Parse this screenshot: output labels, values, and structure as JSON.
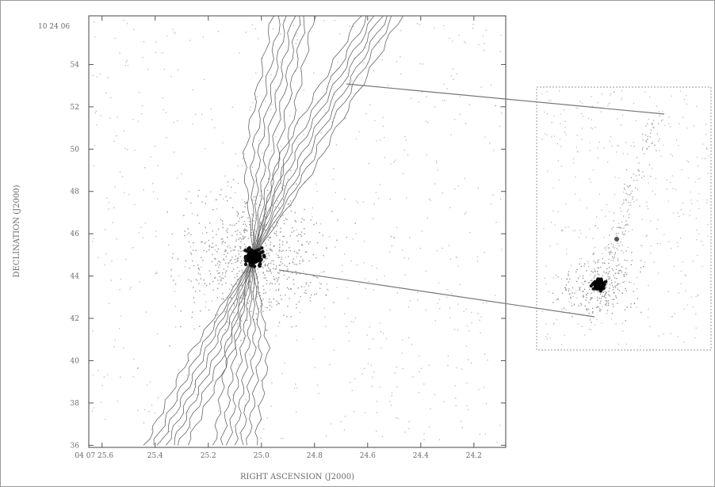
{
  "chart_data": {
    "type": "scatter",
    "xlabel": "RIGHT ASCENSION (J2000)",
    "ylabel": "DECLINATION (J2000)",
    "dec_top_label": "10 24 06",
    "ra_first_label": "04 07 25.6",
    "x_ticks": [
      "04 07 25.6",
      "25.4",
      "25.2",
      "25.0",
      "24.8",
      "24.6",
      "24.4",
      "24.2"
    ],
    "y_ticks": [
      "36",
      "38",
      "40",
      "42",
      "44",
      "46",
      "48",
      "50",
      "52",
      "54"
    ],
    "xlim": [
      25.65,
      24.08
    ],
    "ylim": [
      35.9,
      56.3
    ],
    "source_position": {
      "ra": 25.03,
      "dec": 44.9
    },
    "jet_ridges": [
      {
        "ra": [
          25.36,
          25.18,
          25.03,
          24.83,
          24.55
        ],
        "dec": [
          36.0,
          40.6,
          44.9,
          50.2,
          56.3
        ]
      },
      {
        "ra": [
          25.1,
          25.05,
          25.03,
          24.98,
          24.88
        ],
        "dec": [
          36.0,
          40.6,
          44.9,
          50.2,
          56.3
        ]
      }
    ],
    "grid": false,
    "legend": "none"
  },
  "icons": {
    "background_points": "noise-dots-icon",
    "source": "bright-source-icon"
  }
}
